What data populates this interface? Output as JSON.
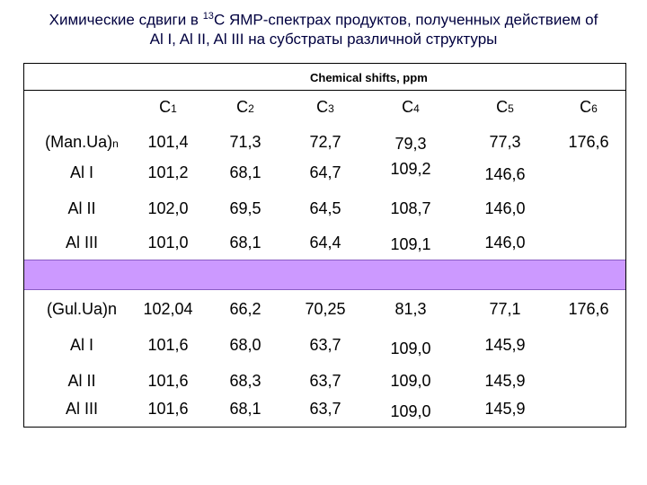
{
  "title": {
    "line1_pre": "Химические сдвиги в ",
    "line1_sup": "13",
    "line1_post": "С ЯМР-спектрах продуктов, полученных действием of",
    "line2": "Al I, Al II, Al III на субстраты различной структуры"
  },
  "table": {
    "header": "Chemical shifts, ppm",
    "columns": [
      {
        "letter": "C",
        "num": "1"
      },
      {
        "letter": "C",
        "num": "2"
      },
      {
        "letter": "C",
        "num": "3"
      },
      {
        "letter": "C",
        "num": "4"
      },
      {
        "letter": "C",
        "num": "5"
      },
      {
        "letter": "C",
        "num": "6"
      }
    ],
    "group1": {
      "name_main": "(Man.Ua)",
      "name_sub": "n",
      "values": [
        "101,4",
        "71,3",
        "72,7",
        "79,3",
        "77,3",
        "176,6"
      ],
      "rows": [
        {
          "label": "Al I",
          "values": [
            "101,2",
            "68,1",
            "64,7",
            "109,2",
            "146,6"
          ]
        },
        {
          "label": "Al II",
          "values": [
            "102,0",
            "69,5",
            "64,5",
            "108,7",
            "146,0"
          ]
        },
        {
          "label": "Al III",
          "values": [
            "101,0",
            "68,1",
            "64,4",
            "109,1",
            "146,0"
          ]
        }
      ]
    },
    "group2": {
      "name": "(Gul.Ua)n",
      "values": [
        "102,04",
        "66,2",
        "70,25",
        "81,3",
        "77,1",
        "176,6"
      ],
      "rows": [
        {
          "label": "Al I",
          "values": [
            "101,6",
            "68,0",
            "63,7",
            "109,0",
            "145,9"
          ]
        },
        {
          "label": "Al II",
          "values": [
            "101,6",
            "68,3",
            "63,7",
            "109,0",
            "145,9"
          ]
        },
        {
          "label": "Al III",
          "values": [
            "101,6",
            "68,1",
            "63,7",
            "109,0",
            "145,9"
          ]
        }
      ]
    },
    "band_color": "#cc99ff"
  }
}
